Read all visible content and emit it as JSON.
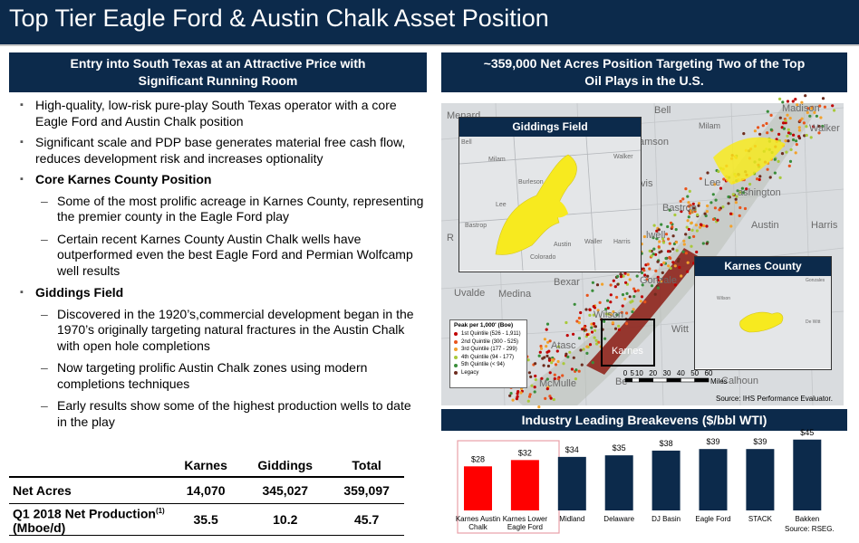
{
  "title": "Top Tier Eagle Ford & Austin Chalk Asset Position",
  "left_header": {
    "line1": "Entry into South Texas at an Attractive Price with",
    "line2": "Significant Running Room"
  },
  "bullets": [
    {
      "level": 1,
      "bold": false,
      "text": "High-quality, low-risk pure-play South Texas operator with a core Eagle Ford and Austin Chalk position"
    },
    {
      "level": 1,
      "bold": false,
      "text": "Significant scale and PDP base generates material free cash flow, reduces development risk and increases optionality"
    },
    {
      "level": 1,
      "bold": true,
      "text": "Core Karnes County Position"
    },
    {
      "level": 2,
      "bold": false,
      "text": "Some of the most prolific acreage in Karnes County, representing the premier county in the Eagle Ford play"
    },
    {
      "level": 2,
      "bold": false,
      "text": "Certain recent Karnes County Austin Chalk wells have outperformed even the best Eagle Ford and Permian Wolfcamp well results"
    },
    {
      "level": 1,
      "bold": true,
      "text": "Giddings Field"
    },
    {
      "level": 2,
      "bold": false,
      "text": "Discovered in the 1920’s,commercial development began in the 1970’s originally targeting natural fractures in the Austin Chalk with open hole completions"
    },
    {
      "level": 2,
      "bold": false,
      "text": "Now targeting prolific Austin Chalk zones using modern completions techniques"
    },
    {
      "level": 2,
      "bold": false,
      "text": "Early results show some of the highest production wells to date in the play"
    }
  ],
  "table": {
    "columns": [
      "Karnes",
      "Giddings",
      "Total"
    ],
    "rows": [
      {
        "label": "Net Acres",
        "values": [
          "14,070",
          "345,027",
          "359,097"
        ]
      },
      {
        "label": "Q1 2018 Net Production",
        "sup": "(1)",
        "label2": "(Mboe/d)",
        "values": [
          "35.5",
          "10.2",
          "45.7"
        ]
      }
    ]
  },
  "map_header": {
    "line1": "~359,000 Net Acres Position Targeting Two of the Top",
    "line2": "Oil Plays in the U.S."
  },
  "map": {
    "labels": {
      "menard": "Menard",
      "bell": "Bell",
      "milam": "Milam",
      "madison": "Madison",
      "walker": "Walker",
      "williamson": "amson",
      "lee": "Lee",
      "washington": "ashington",
      "bastrop": "Bastrop",
      "harris": "Harris",
      "austin": "Austin",
      "caldwell": "lwell",
      "bexar": "Bexar",
      "gonzales": "Gonzale",
      "uvalde": "Uvalde",
      "medina": "Medina",
      "wilson": "Wilson",
      "dewitt": "Witt",
      "karnes": "Karnes",
      "atascosa": "Atasc",
      "mcmullen": "McMulle",
      "bee": "Be",
      "calhoun": "Calhoun",
      "r": "R",
      "vis": "vis"
    },
    "giddings_inset": {
      "title": "Giddings Field",
      "labels": {
        "bell": "Bell",
        "milam": "Milam",
        "burleson": "Burleson",
        "walker": "Walker",
        "lee": "Lee",
        "bastrop": "Bastrop",
        "austin": "Austin",
        "waller": "Waller",
        "harris": "Harris",
        "colorado": "Colorado"
      }
    },
    "karnes_inset": {
      "title": "Karnes County",
      "labels": {
        "gonzales": "Gonzales",
        "wilson": "Wilson",
        "dewitt": "De Witt"
      }
    },
    "legend": {
      "title": "Peak per 1,000' (Boe)",
      "items": [
        {
          "label": "1st Quintile (526 - 1,911)",
          "color": "#c00000"
        },
        {
          "label": "2nd Quintile (300 - 525)",
          "color": "#e8541c"
        },
        {
          "label": "3rd Quintile (177 - 299)",
          "color": "#f2a12b"
        },
        {
          "label": "4th Quintile (94 - 177)",
          "color": "#a8c93a"
        },
        {
          "label": "5th Quintile (< 94)",
          "color": "#3a8d3a"
        },
        {
          "label": "Legacy",
          "color": "#6d2c1e"
        }
      ]
    },
    "scale": {
      "ticks": [
        "0",
        "5",
        "10",
        "20",
        "30",
        "40",
        "50",
        "60"
      ],
      "unit": "Miles"
    },
    "source": "Source: IHS Performance Evaluator."
  },
  "chart_header": "Industry Leading Breakevens ($/bbl WTI)",
  "chart_data": {
    "type": "bar",
    "categories": [
      [
        "Karnes Austin",
        "Chalk"
      ],
      [
        "Karnes Lower",
        "Eagle Ford"
      ],
      [
        "Midland"
      ],
      [
        "Delaware"
      ],
      [
        "DJ Basin"
      ],
      [
        "Eagle Ford"
      ],
      [
        "STACK"
      ],
      [
        "Bakken"
      ]
    ],
    "values": [
      28,
      32,
      34,
      35,
      38,
      39,
      39,
      45
    ],
    "labels": [
      "$28",
      "$32",
      "$34",
      "$35",
      "$38",
      "$39",
      "$39",
      "$45"
    ],
    "colors": [
      "#ff0000",
      "#ff0000",
      "#0c2a4b",
      "#0c2a4b",
      "#0c2a4b",
      "#0c2a4b",
      "#0c2a4b",
      "#0c2a4b"
    ],
    "highlight_border": "#e8a0a8",
    "source": "Source: RSEG."
  },
  "colors": {
    "navy": "#0c2a4b",
    "red": "#ff0000"
  }
}
